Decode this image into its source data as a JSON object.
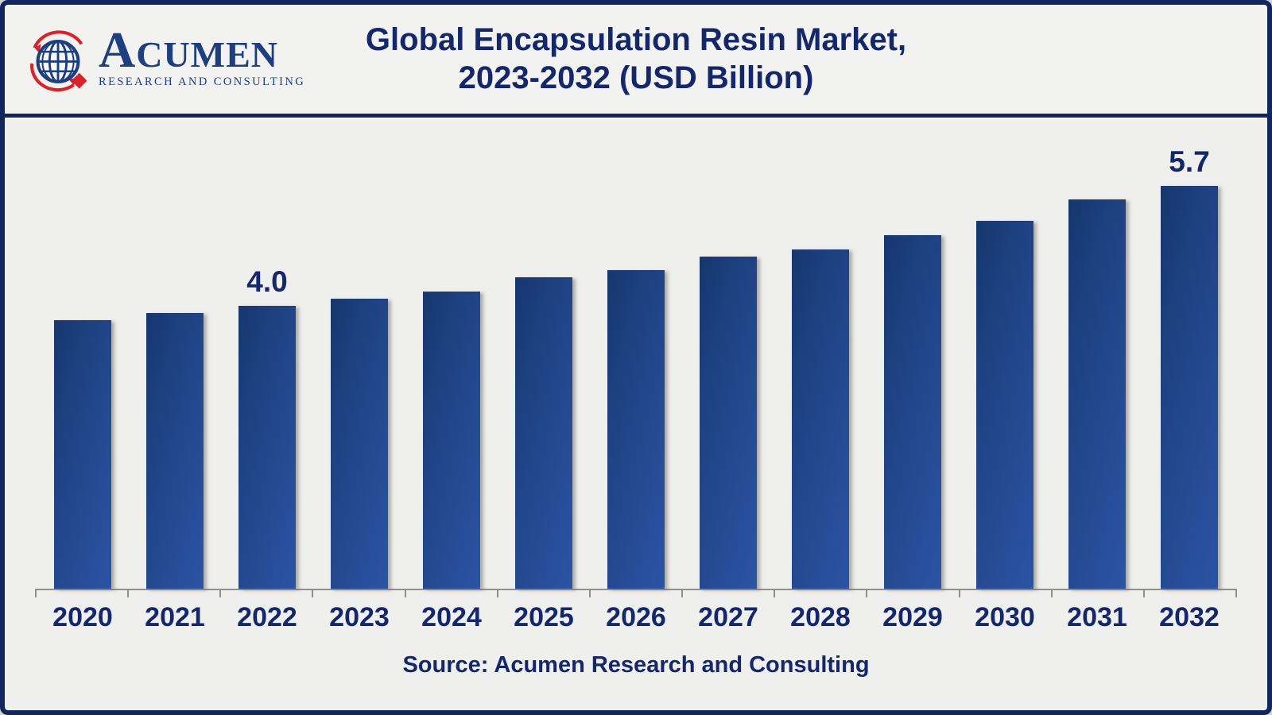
{
  "header": {
    "logo": {
      "brand_initial": "A",
      "brand_rest": "CUMEN",
      "tagline": "RESEARCH AND CONSULTING"
    },
    "title_line1": "Global Encapsulation Resin Market,",
    "title_line2": "2023-2032 (USD Billion)"
  },
  "source_line": "Source: Acumen Research and Consulting",
  "chart_data": {
    "type": "bar",
    "title": "Global Encapsulation Resin Market, 2023-2032 (USD Billion)",
    "unit": "USD Billion",
    "categories": [
      "2020",
      "2021",
      "2022",
      "2023",
      "2024",
      "2025",
      "2026",
      "2027",
      "2028",
      "2029",
      "2030",
      "2031",
      "2032"
    ],
    "values": [
      3.8,
      3.9,
      4.0,
      4.1,
      4.2,
      4.4,
      4.5,
      4.7,
      4.8,
      5.0,
      5.2,
      5.5,
      5.7
    ],
    "data_labels": [
      "",
      "",
      "4.0",
      "",
      "",
      "",
      "",
      "",
      "",
      "",
      "",
      "",
      "5.7"
    ],
    "ylim": [
      0,
      6.7
    ],
    "grid": false,
    "legend": false,
    "x_axis": "years",
    "y_axis_visible": false
  },
  "colors": {
    "navy_text": "#14276b",
    "navy_border": "#11265e",
    "navy_logo": "#1d3f7f",
    "logo_red": "#d8232a",
    "bar_gradient_dark": "#16366d",
    "bar_gradient_light": "#2b54a4",
    "background": "#efefed",
    "axis_gray": "#8f8f8f"
  }
}
